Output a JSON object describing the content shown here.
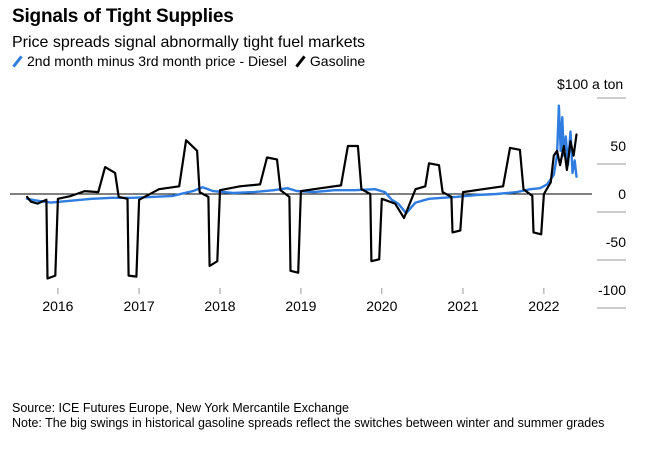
{
  "header": {
    "title": "Signals of Tight Supplies",
    "subtitle": "Price spreads signal abnormally tight fuel markets"
  },
  "colors": {
    "diesel": "#2f7de1",
    "gasoline": "#000000",
    "axis": "#000000",
    "tick": "#999999"
  },
  "footer": {
    "source": "Source: ICE Futures Europe, New York Mercantile Exchange",
    "note": "Note: The big swings in historical gasoline spreads reflect the switches between winter and summer grades"
  },
  "chart_data": {
    "type": "line",
    "title": "Signals of Tight Supplies",
    "subtitle": "Price spreads signal abnormally tight fuel markets",
    "ylabel": "$100 a ton",
    "ylim": [
      -110,
      100
    ],
    "xlim": [
      "2015-08-01",
      "2022-07-01"
    ],
    "y_ticks": [
      {
        "value": 100,
        "label": "$100 a ton"
      },
      {
        "value": 50,
        "label": "50"
      },
      {
        "value": 0,
        "label": "0"
      },
      {
        "value": -50,
        "label": "-50"
      },
      {
        "value": -100,
        "label": "-100"
      }
    ],
    "x_ticks": [
      {
        "date": "2016-01-01",
        "label": "2016"
      },
      {
        "date": "2017-01-01",
        "label": "2017"
      },
      {
        "date": "2018-01-01",
        "label": "2018"
      },
      {
        "date": "2019-01-01",
        "label": "2019"
      },
      {
        "date": "2020-01-01",
        "label": "2020"
      },
      {
        "date": "2021-01-01",
        "label": "2021"
      },
      {
        "date": "2022-01-01",
        "label": "2022"
      }
    ],
    "legend": [
      {
        "name": "2nd month minus 3rd month price - Diesel",
        "color": "#2f7de1"
      },
      {
        "name": "Gasoline",
        "color": "#000000"
      }
    ],
    "series": [
      {
        "name": "2nd month minus 3rd month price - Diesel",
        "color": "#2f7de1",
        "points": [
          [
            "2015-08-15",
            -5
          ],
          [
            "2015-10-01",
            -7
          ],
          [
            "2015-12-01",
            -9
          ],
          [
            "2016-03-01",
            -7
          ],
          [
            "2016-06-01",
            -5
          ],
          [
            "2016-09-01",
            -4
          ],
          [
            "2016-12-01",
            -4
          ],
          [
            "2017-03-01",
            -3
          ],
          [
            "2017-06-01",
            -2
          ],
          [
            "2017-09-01",
            3
          ],
          [
            "2017-10-15",
            7
          ],
          [
            "2017-12-01",
            3
          ],
          [
            "2018-03-01",
            1
          ],
          [
            "2018-06-01",
            2
          ],
          [
            "2018-09-01",
            4
          ],
          [
            "2018-11-01",
            6
          ],
          [
            "2018-12-15",
            3
          ],
          [
            "2019-03-01",
            2
          ],
          [
            "2019-06-01",
            4
          ],
          [
            "2019-09-01",
            4
          ],
          [
            "2019-12-01",
            5
          ],
          [
            "2020-01-15",
            2
          ],
          [
            "2020-02-15",
            -6
          ],
          [
            "2020-03-15",
            -10
          ],
          [
            "2020-04-20",
            -20
          ],
          [
            "2020-06-01",
            -9
          ],
          [
            "2020-08-01",
            -5
          ],
          [
            "2020-10-01",
            -4
          ],
          [
            "2020-12-01",
            -3
          ],
          [
            "2021-03-01",
            -1
          ],
          [
            "2021-06-01",
            0
          ],
          [
            "2021-09-01",
            2
          ],
          [
            "2021-11-01",
            5
          ],
          [
            "2021-12-15",
            6
          ],
          [
            "2022-01-15",
            10
          ],
          [
            "2022-02-15",
            20
          ],
          [
            "2022-03-01",
            40
          ],
          [
            "2022-03-10",
            92
          ],
          [
            "2022-03-18",
            45
          ],
          [
            "2022-03-25",
            80
          ],
          [
            "2022-04-01",
            40
          ],
          [
            "2022-04-10",
            60
          ],
          [
            "2022-04-20",
            30
          ],
          [
            "2022-05-01",
            65
          ],
          [
            "2022-05-10",
            22
          ],
          [
            "2022-05-20",
            35
          ],
          [
            "2022-05-28",
            18
          ]
        ]
      },
      {
        "name": "Gasoline",
        "color": "#000000",
        "points": [
          [
            "2015-08-15",
            -3
          ],
          [
            "2015-09-01",
            -8
          ],
          [
            "2015-10-01",
            -10
          ],
          [
            "2015-11-10",
            -6
          ],
          [
            "2015-11-15",
            -88
          ],
          [
            "2015-12-20",
            -85
          ],
          [
            "2016-01-01",
            -5
          ],
          [
            "2016-03-01",
            -2
          ],
          [
            "2016-05-01",
            3
          ],
          [
            "2016-07-01",
            2
          ],
          [
            "2016-08-01",
            28
          ],
          [
            "2016-09-15",
            22
          ],
          [
            "2016-10-01",
            -3
          ],
          [
            "2016-11-10",
            -5
          ],
          [
            "2016-11-15",
            -85
          ],
          [
            "2016-12-20",
            -86
          ],
          [
            "2017-01-01",
            -6
          ],
          [
            "2017-04-01",
            5
          ],
          [
            "2017-07-01",
            8
          ],
          [
            "2017-08-01",
            56
          ],
          [
            "2017-09-20",
            45
          ],
          [
            "2017-10-01",
            2
          ],
          [
            "2017-11-10",
            -3
          ],
          [
            "2017-11-15",
            -75
          ],
          [
            "2017-12-20",
            -70
          ],
          [
            "2018-01-01",
            4
          ],
          [
            "2018-04-01",
            8
          ],
          [
            "2018-07-01",
            10
          ],
          [
            "2018-08-01",
            38
          ],
          [
            "2018-09-15",
            36
          ],
          [
            "2018-10-01",
            4
          ],
          [
            "2018-11-10",
            -3
          ],
          [
            "2018-11-15",
            -80
          ],
          [
            "2018-12-20",
            -82
          ],
          [
            "2019-01-01",
            3
          ],
          [
            "2019-04-01",
            6
          ],
          [
            "2019-07-01",
            9
          ],
          [
            "2019-08-01",
            50
          ],
          [
            "2019-09-15",
            50
          ],
          [
            "2019-10-01",
            5
          ],
          [
            "2019-11-10",
            0
          ],
          [
            "2019-11-15",
            -70
          ],
          [
            "2019-12-20",
            -68
          ],
          [
            "2020-01-01",
            -5
          ],
          [
            "2020-03-01",
            -10
          ],
          [
            "2020-04-10",
            -25
          ],
          [
            "2020-06-01",
            5
          ],
          [
            "2020-07-15",
            8
          ],
          [
            "2020-08-01",
            32
          ],
          [
            "2020-09-15",
            30
          ],
          [
            "2020-10-01",
            2
          ],
          [
            "2020-11-10",
            -3
          ],
          [
            "2020-11-15",
            -40
          ],
          [
            "2020-12-20",
            -38
          ],
          [
            "2021-01-01",
            2
          ],
          [
            "2021-04-01",
            5
          ],
          [
            "2021-07-01",
            8
          ],
          [
            "2021-08-01",
            48
          ],
          [
            "2021-09-15",
            46
          ],
          [
            "2021-10-01",
            5
          ],
          [
            "2021-11-10",
            -2
          ],
          [
            "2021-11-15",
            -40
          ],
          [
            "2021-12-20",
            -42
          ],
          [
            "2022-01-01",
            0
          ],
          [
            "2022-02-01",
            12
          ],
          [
            "2022-02-15",
            40
          ],
          [
            "2022-03-01",
            45
          ],
          [
            "2022-03-15",
            30
          ],
          [
            "2022-04-01",
            50
          ],
          [
            "2022-04-15",
            25
          ],
          [
            "2022-05-01",
            55
          ],
          [
            "2022-05-15",
            40
          ],
          [
            "2022-05-28",
            62
          ]
        ]
      }
    ]
  }
}
